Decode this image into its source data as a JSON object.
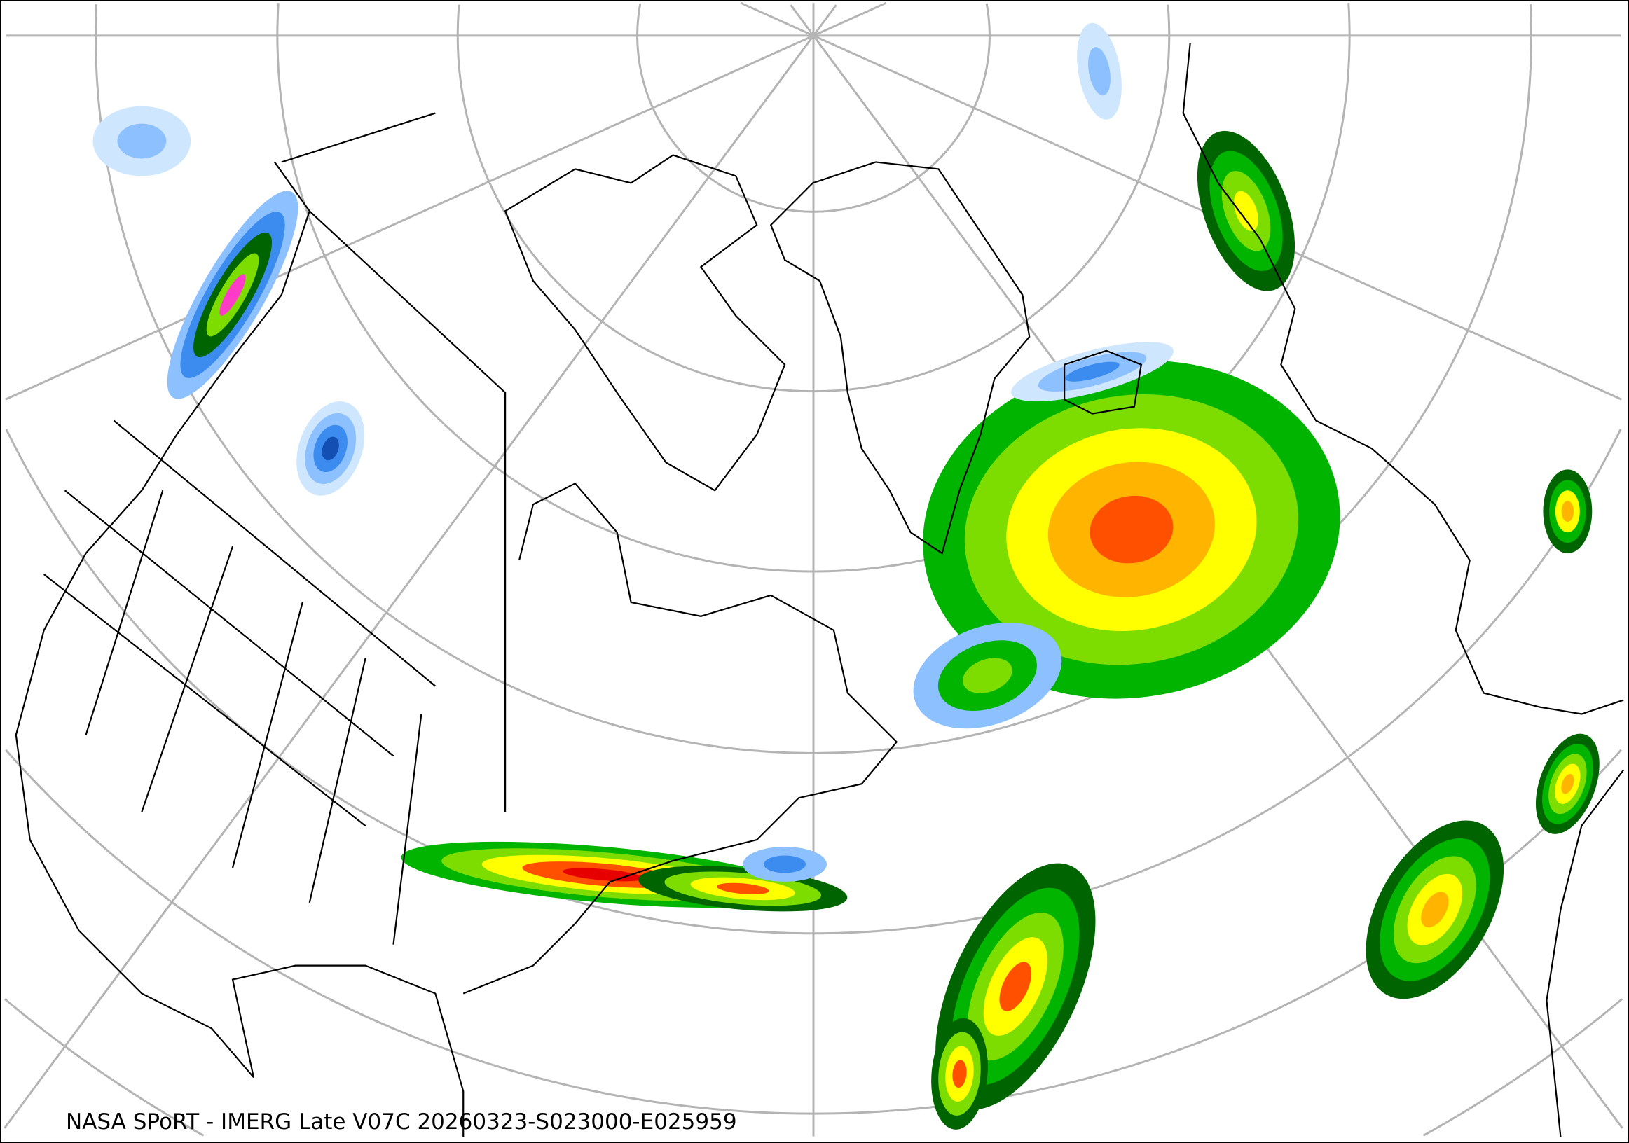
{
  "caption": "NASA SPoRT - IMERG Late V07C 20260323-S023000-E025959",
  "map": {
    "projection": "polar stereographic (north pole)",
    "graticule_color": "#b4b4b4",
    "coastline_color": "#000000",
    "precip_colors": [
      "#cfe6ff",
      "#8cc0ff",
      "#3c8cf0",
      "#1450b4",
      "#006400",
      "#00b400",
      "#7ddc00",
      "#ffff00",
      "#ffb400",
      "#ff5000",
      "#e60000",
      "#ff3cc8"
    ]
  }
}
